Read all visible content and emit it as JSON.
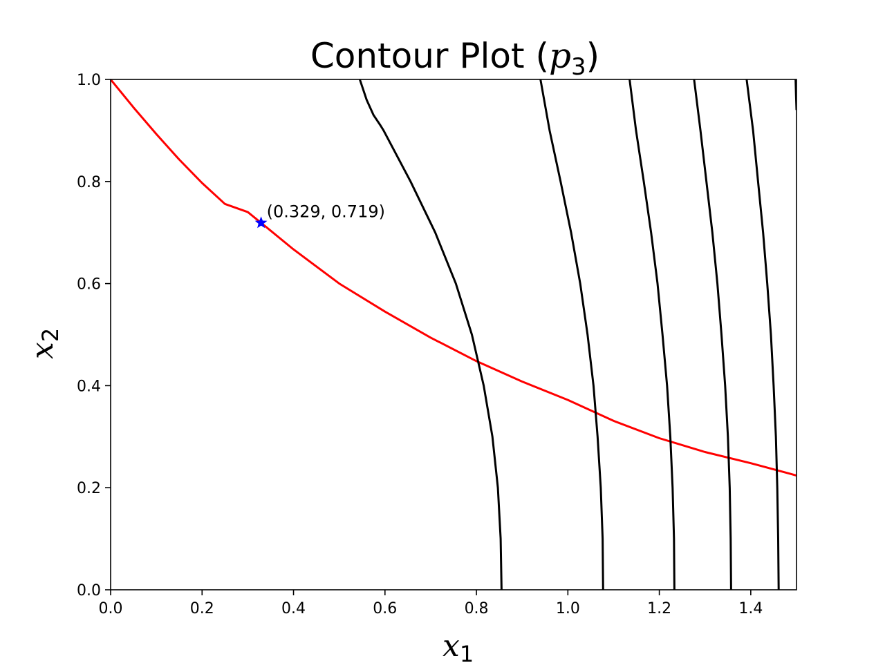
{
  "chart_data": {
    "type": "line",
    "title": "Contour Plot (",
    "title_var": "p",
    "title_sub": "3",
    "title_close": ")",
    "xlabel": "x",
    "xlabel_sub": "1",
    "ylabel": "x",
    "ylabel_sub": "2",
    "xlim": [
      0.0,
      1.5
    ],
    "ylim": [
      0.0,
      1.0
    ],
    "xticks": [
      0.0,
      0.2,
      0.4,
      0.6,
      0.8,
      1.0,
      1.2,
      1.4
    ],
    "xtick_labels": [
      "0.0",
      "0.2",
      "0.4",
      "0.6",
      "0.8",
      "1.0",
      "1.2",
      "1.4"
    ],
    "yticks": [
      0.0,
      0.2,
      0.4,
      0.6,
      0.8,
      1.0
    ],
    "ytick_labels": [
      "0.0",
      "0.2",
      "0.4",
      "0.6",
      "0.8",
      "1.0"
    ],
    "grid": false,
    "series": [
      {
        "kind": "constraint",
        "color": "#ff0000",
        "points": [
          [
            0.0,
            1.0
          ],
          [
            0.05,
            0.945
          ],
          [
            0.1,
            0.893
          ],
          [
            0.15,
            0.843
          ],
          [
            0.2,
            0.797
          ],
          [
            0.25,
            0.756
          ],
          [
            0.3,
            0.74
          ],
          [
            0.329,
            0.719
          ],
          [
            0.4,
            0.667
          ],
          [
            0.5,
            0.6
          ],
          [
            0.6,
            0.545
          ],
          [
            0.7,
            0.494
          ],
          [
            0.8,
            0.448
          ],
          [
            0.9,
            0.408
          ],
          [
            1.0,
            0.372
          ],
          [
            1.1,
            0.331
          ],
          [
            1.2,
            0.297
          ],
          [
            1.3,
            0.27
          ],
          [
            1.4,
            0.248
          ],
          [
            1.5,
            0.224
          ]
        ]
      },
      {
        "kind": "contour",
        "color": "#000000",
        "points": [
          [
            0.855,
            0.0
          ],
          [
            0.853,
            0.1
          ],
          [
            0.847,
            0.2
          ],
          [
            0.835,
            0.3
          ],
          [
            0.816,
            0.4
          ],
          [
            0.79,
            0.5
          ],
          [
            0.755,
            0.6
          ],
          [
            0.71,
            0.7
          ],
          [
            0.656,
            0.8
          ],
          [
            0.597,
            0.9
          ],
          [
            0.59,
            0.91
          ],
          [
            0.575,
            0.93
          ],
          [
            0.56,
            0.96
          ],
          [
            0.545,
            1.0
          ]
        ]
      },
      {
        "kind": "contour",
        "color": "#000000",
        "points": [
          [
            1.077,
            0.0
          ],
          [
            1.076,
            0.1
          ],
          [
            1.072,
            0.2
          ],
          [
            1.065,
            0.3
          ],
          [
            1.056,
            0.4
          ],
          [
            1.043,
            0.5
          ],
          [
            1.027,
            0.6
          ],
          [
            1.007,
            0.7
          ],
          [
            0.984,
            0.8
          ],
          [
            0.96,
            0.9
          ],
          [
            0.94,
            1.0
          ]
        ]
      },
      {
        "kind": "contour",
        "color": "#000000",
        "points": [
          [
            1.233,
            0.0
          ],
          [
            1.232,
            0.1
          ],
          [
            1.229,
            0.2
          ],
          [
            1.224,
            0.3
          ],
          [
            1.217,
            0.4
          ],
          [
            1.207,
            0.5
          ],
          [
            1.196,
            0.6
          ],
          [
            1.182,
            0.7
          ],
          [
            1.166,
            0.8
          ],
          [
            1.149,
            0.9
          ],
          [
            1.135,
            1.0
          ]
        ]
      },
      {
        "kind": "contour",
        "color": "#000000",
        "points": [
          [
            1.357,
            0.0
          ],
          [
            1.356,
            0.1
          ],
          [
            1.354,
            0.2
          ],
          [
            1.35,
            0.3
          ],
          [
            1.344,
            0.4
          ],
          [
            1.336,
            0.5
          ],
          [
            1.327,
            0.6
          ],
          [
            1.316,
            0.7
          ],
          [
            1.303,
            0.8
          ],
          [
            1.29,
            0.9
          ],
          [
            1.276,
            1.0
          ]
        ]
      },
      {
        "kind": "contour",
        "color": "#000000",
        "points": [
          [
            1.461,
            0.0
          ],
          [
            1.46,
            0.1
          ],
          [
            1.458,
            0.2
          ],
          [
            1.455,
            0.3
          ],
          [
            1.45,
            0.4
          ],
          [
            1.444,
            0.5
          ],
          [
            1.436,
            0.6
          ],
          [
            1.427,
            0.7
          ],
          [
            1.416,
            0.8
          ],
          [
            1.405,
            0.9
          ],
          [
            1.391,
            1.0
          ]
        ]
      },
      {
        "kind": "contour",
        "color": "#000000",
        "points": [
          [
            1.5,
            0.94
          ],
          [
            1.499,
            0.97
          ],
          [
            1.498,
            1.0
          ]
        ]
      }
    ],
    "marker": {
      "x": 0.329,
      "y": 0.719,
      "symbol": "star",
      "color": "#0000ff",
      "label": "(0.329, 0.719)"
    }
  }
}
